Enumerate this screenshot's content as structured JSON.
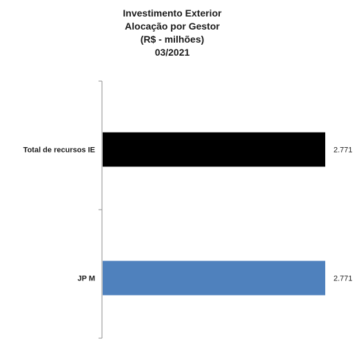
{
  "chart_data": {
    "type": "bar",
    "orientation": "horizontal",
    "title_lines": [
      "Investimento Exterior",
      "Alocação por Gestor",
      "(R$ - milhões)",
      "03/2021"
    ],
    "categories": [
      "Total de recursos IE",
      "JP M"
    ],
    "values": [
      2771,
      2771
    ],
    "value_labels": [
      "2.771",
      "2.771"
    ],
    "colors": [
      "#000000",
      "#4f81bd"
    ],
    "xlim": [
      0,
      2771
    ],
    "grid": false,
    "legend": "none"
  }
}
